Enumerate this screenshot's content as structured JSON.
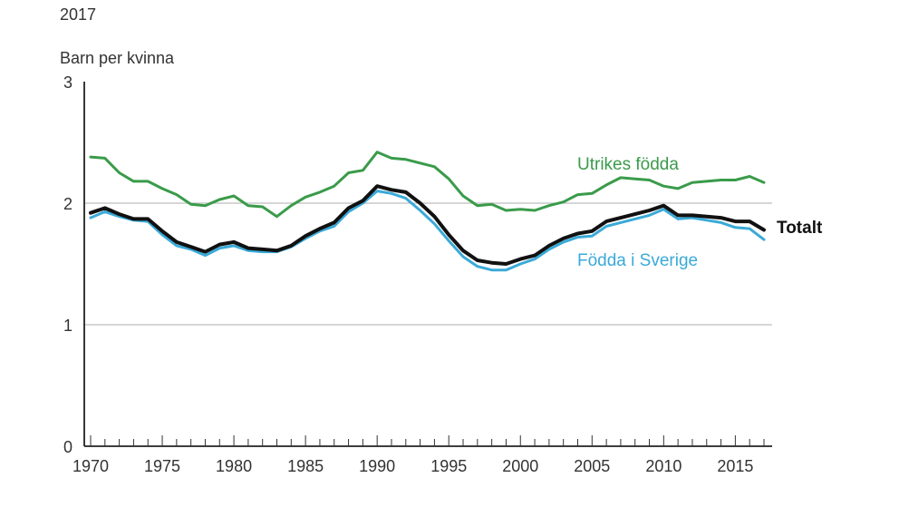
{
  "header": {
    "year": "2017"
  },
  "chart_data": {
    "type": "line",
    "title": "2017",
    "ylabel": "Barn per kvinna",
    "xlabel": "",
    "xlim": [
      1970,
      2017
    ],
    "ylim": [
      0,
      3
    ],
    "yticks": [
      0,
      1,
      2,
      3
    ],
    "xticks": [
      1970,
      1975,
      1980,
      1985,
      1990,
      1995,
      2000,
      2005,
      2010,
      2015
    ],
    "grid": "horizontal at 1 and 2",
    "x": [
      1970,
      1971,
      1972,
      1973,
      1974,
      1975,
      1976,
      1977,
      1978,
      1979,
      1980,
      1981,
      1982,
      1983,
      1984,
      1985,
      1986,
      1987,
      1988,
      1989,
      1990,
      1991,
      1992,
      1993,
      1994,
      1995,
      1996,
      1997,
      1998,
      1999,
      2000,
      2001,
      2002,
      2003,
      2004,
      2005,
      2006,
      2007,
      2008,
      2009,
      2010,
      2011,
      2012,
      2013,
      2014,
      2015,
      2016,
      2017
    ],
    "series": [
      {
        "name": "Utrikes födda",
        "color": "#3a9b4a",
        "values": [
          2.38,
          2.37,
          2.25,
          2.18,
          2.18,
          2.12,
          2.07,
          1.99,
          1.98,
          2.03,
          2.06,
          1.98,
          1.97,
          1.89,
          1.98,
          2.05,
          2.09,
          2.14,
          2.25,
          2.27,
          2.42,
          2.37,
          2.36,
          2.33,
          2.3,
          2.2,
          2.06,
          1.98,
          1.99,
          1.94,
          1.95,
          1.94,
          1.98,
          2.01,
          2.07,
          2.08,
          2.15,
          2.21,
          2.2,
          2.19,
          2.14,
          2.12,
          2.17,
          2.18,
          2.19,
          2.19,
          2.22,
          2.17
        ]
      },
      {
        "name": "Totalt",
        "color": "#111111",
        "values": [
          1.92,
          1.96,
          1.91,
          1.87,
          1.87,
          1.77,
          1.68,
          1.64,
          1.6,
          1.66,
          1.68,
          1.63,
          1.62,
          1.61,
          1.65,
          1.73,
          1.79,
          1.84,
          1.96,
          2.02,
          2.14,
          2.11,
          2.09,
          2.0,
          1.89,
          1.74,
          1.61,
          1.53,
          1.51,
          1.5,
          1.54,
          1.57,
          1.65,
          1.71,
          1.75,
          1.77,
          1.85,
          1.88,
          1.91,
          1.94,
          1.98,
          1.9,
          1.9,
          1.89,
          1.88,
          1.85,
          1.85,
          1.78
        ]
      },
      {
        "name": "Födda i Sverige",
        "color": "#3aaad8",
        "values": [
          1.88,
          1.93,
          1.89,
          1.86,
          1.85,
          1.74,
          1.65,
          1.62,
          1.57,
          1.63,
          1.65,
          1.61,
          1.6,
          1.6,
          1.64,
          1.71,
          1.77,
          1.81,
          1.93,
          2.0,
          2.1,
          2.08,
          2.04,
          1.94,
          1.83,
          1.69,
          1.56,
          1.48,
          1.45,
          1.45,
          1.5,
          1.54,
          1.62,
          1.68,
          1.72,
          1.73,
          1.81,
          1.84,
          1.87,
          1.9,
          1.95,
          1.87,
          1.88,
          1.86,
          1.84,
          1.8,
          1.79,
          1.7
        ]
      }
    ]
  }
}
